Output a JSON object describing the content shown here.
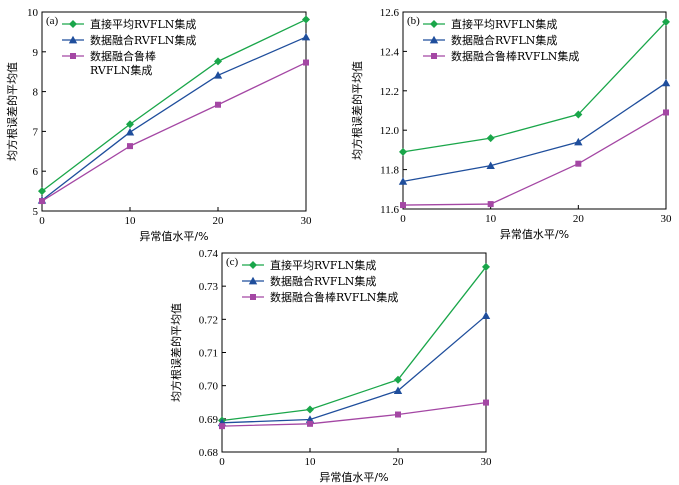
{
  "chart_data": [
    {
      "type": "line",
      "panel_label": "(a)",
      "xlabel": "异常值水平/%",
      "ylabel": "均方根误差的平均值",
      "x": [
        0,
        10,
        20,
        30
      ],
      "xlim": [
        0,
        30
      ],
      "xticks": [
        0,
        10,
        20,
        30
      ],
      "ylim": [
        5,
        10
      ],
      "yticks": [
        5,
        6,
        7,
        8,
        9,
        10
      ],
      "tick_format_decimals": 0,
      "grid": false,
      "legend_position": "top-left",
      "series": [
        {
          "name": "直接平均RVFLN集成",
          "legend_lines": [
            "直接平均RVFLN集成"
          ],
          "color": "#1aa64a",
          "marker": "diamond",
          "values": [
            5.5,
            7.18,
            8.76,
            9.81
          ]
        },
        {
          "name": "数据融合RVFLN集成",
          "legend_lines": [
            "数据融合RVFLN集成"
          ],
          "color": "#1f4e9c",
          "marker": "triangle",
          "values": [
            5.27,
            6.98,
            8.41,
            9.37
          ]
        },
        {
          "name": "数据融合鲁棒RVFLN集成",
          "legend_lines": [
            "数据融合鲁棒",
            "RVFLN集成"
          ],
          "color": "#a447a4",
          "marker": "square",
          "values": [
            5.25,
            6.63,
            7.67,
            8.73
          ]
        }
      ]
    },
    {
      "type": "line",
      "panel_label": "(b)",
      "xlabel": "异常值水平/%",
      "ylabel": "均方根误差的平均值",
      "x": [
        0,
        10,
        20,
        30
      ],
      "xlim": [
        0,
        30
      ],
      "xticks": [
        0,
        10,
        20,
        30
      ],
      "ylim": [
        11.6,
        12.6
      ],
      "yticks": [
        11.6,
        11.8,
        12.0,
        12.2,
        12.4,
        12.6
      ],
      "tick_format_decimals": 1,
      "grid": false,
      "legend_position": "top-left",
      "series": [
        {
          "name": "直接平均RVFLN集成",
          "legend_lines": [
            "直接平均RVFLN集成"
          ],
          "color": "#1aa64a",
          "marker": "diamond",
          "values": [
            11.89,
            11.96,
            12.08,
            12.55
          ]
        },
        {
          "name": "数据融合RVFLN集成",
          "legend_lines": [
            "数据融合RVFLN集成"
          ],
          "color": "#1f4e9c",
          "marker": "triangle",
          "values": [
            11.74,
            11.82,
            11.94,
            12.24
          ]
        },
        {
          "name": "数据融合鲁棒RVFLN集成",
          "legend_lines": [
            "数据融合鲁棒RVFLN集成"
          ],
          "color": "#a447a4",
          "marker": "square",
          "values": [
            11.62,
            11.625,
            11.83,
            12.09
          ]
        }
      ]
    },
    {
      "type": "line",
      "panel_label": "(c)",
      "xlabel": "异常值水平/%",
      "ylabel": "均方根误差的平均值",
      "x": [
        0,
        10,
        20,
        30
      ],
      "xlim": [
        0,
        30
      ],
      "xticks": [
        0,
        10,
        20,
        30
      ],
      "ylim": [
        0.68,
        0.74
      ],
      "yticks": [
        0.68,
        0.69,
        0.7,
        0.71,
        0.72,
        0.73,
        0.74
      ],
      "tick_format_decimals": 2,
      "grid": false,
      "legend_position": "top-left",
      "series": [
        {
          "name": "直接平均RVFLN集成",
          "legend_lines": [
            "直接平均RVFLN集成"
          ],
          "color": "#1aa64a",
          "marker": "diamond",
          "values": [
            0.6895,
            0.6928,
            0.7018,
            0.7358
          ]
        },
        {
          "name": "数据融合RVFLN集成",
          "legend_lines": [
            "数据融合RVFLN集成"
          ],
          "color": "#1f4e9c",
          "marker": "triangle",
          "values": [
            0.6888,
            0.6898,
            0.6985,
            0.7211
          ]
        },
        {
          "name": "数据融合鲁棒RVFLN集成",
          "legend_lines": [
            "数据融合鲁棒RVFLN集成"
          ],
          "color": "#a447a4",
          "marker": "square",
          "values": [
            0.6878,
            0.6885,
            0.6913,
            0.6949
          ]
        }
      ]
    }
  ]
}
